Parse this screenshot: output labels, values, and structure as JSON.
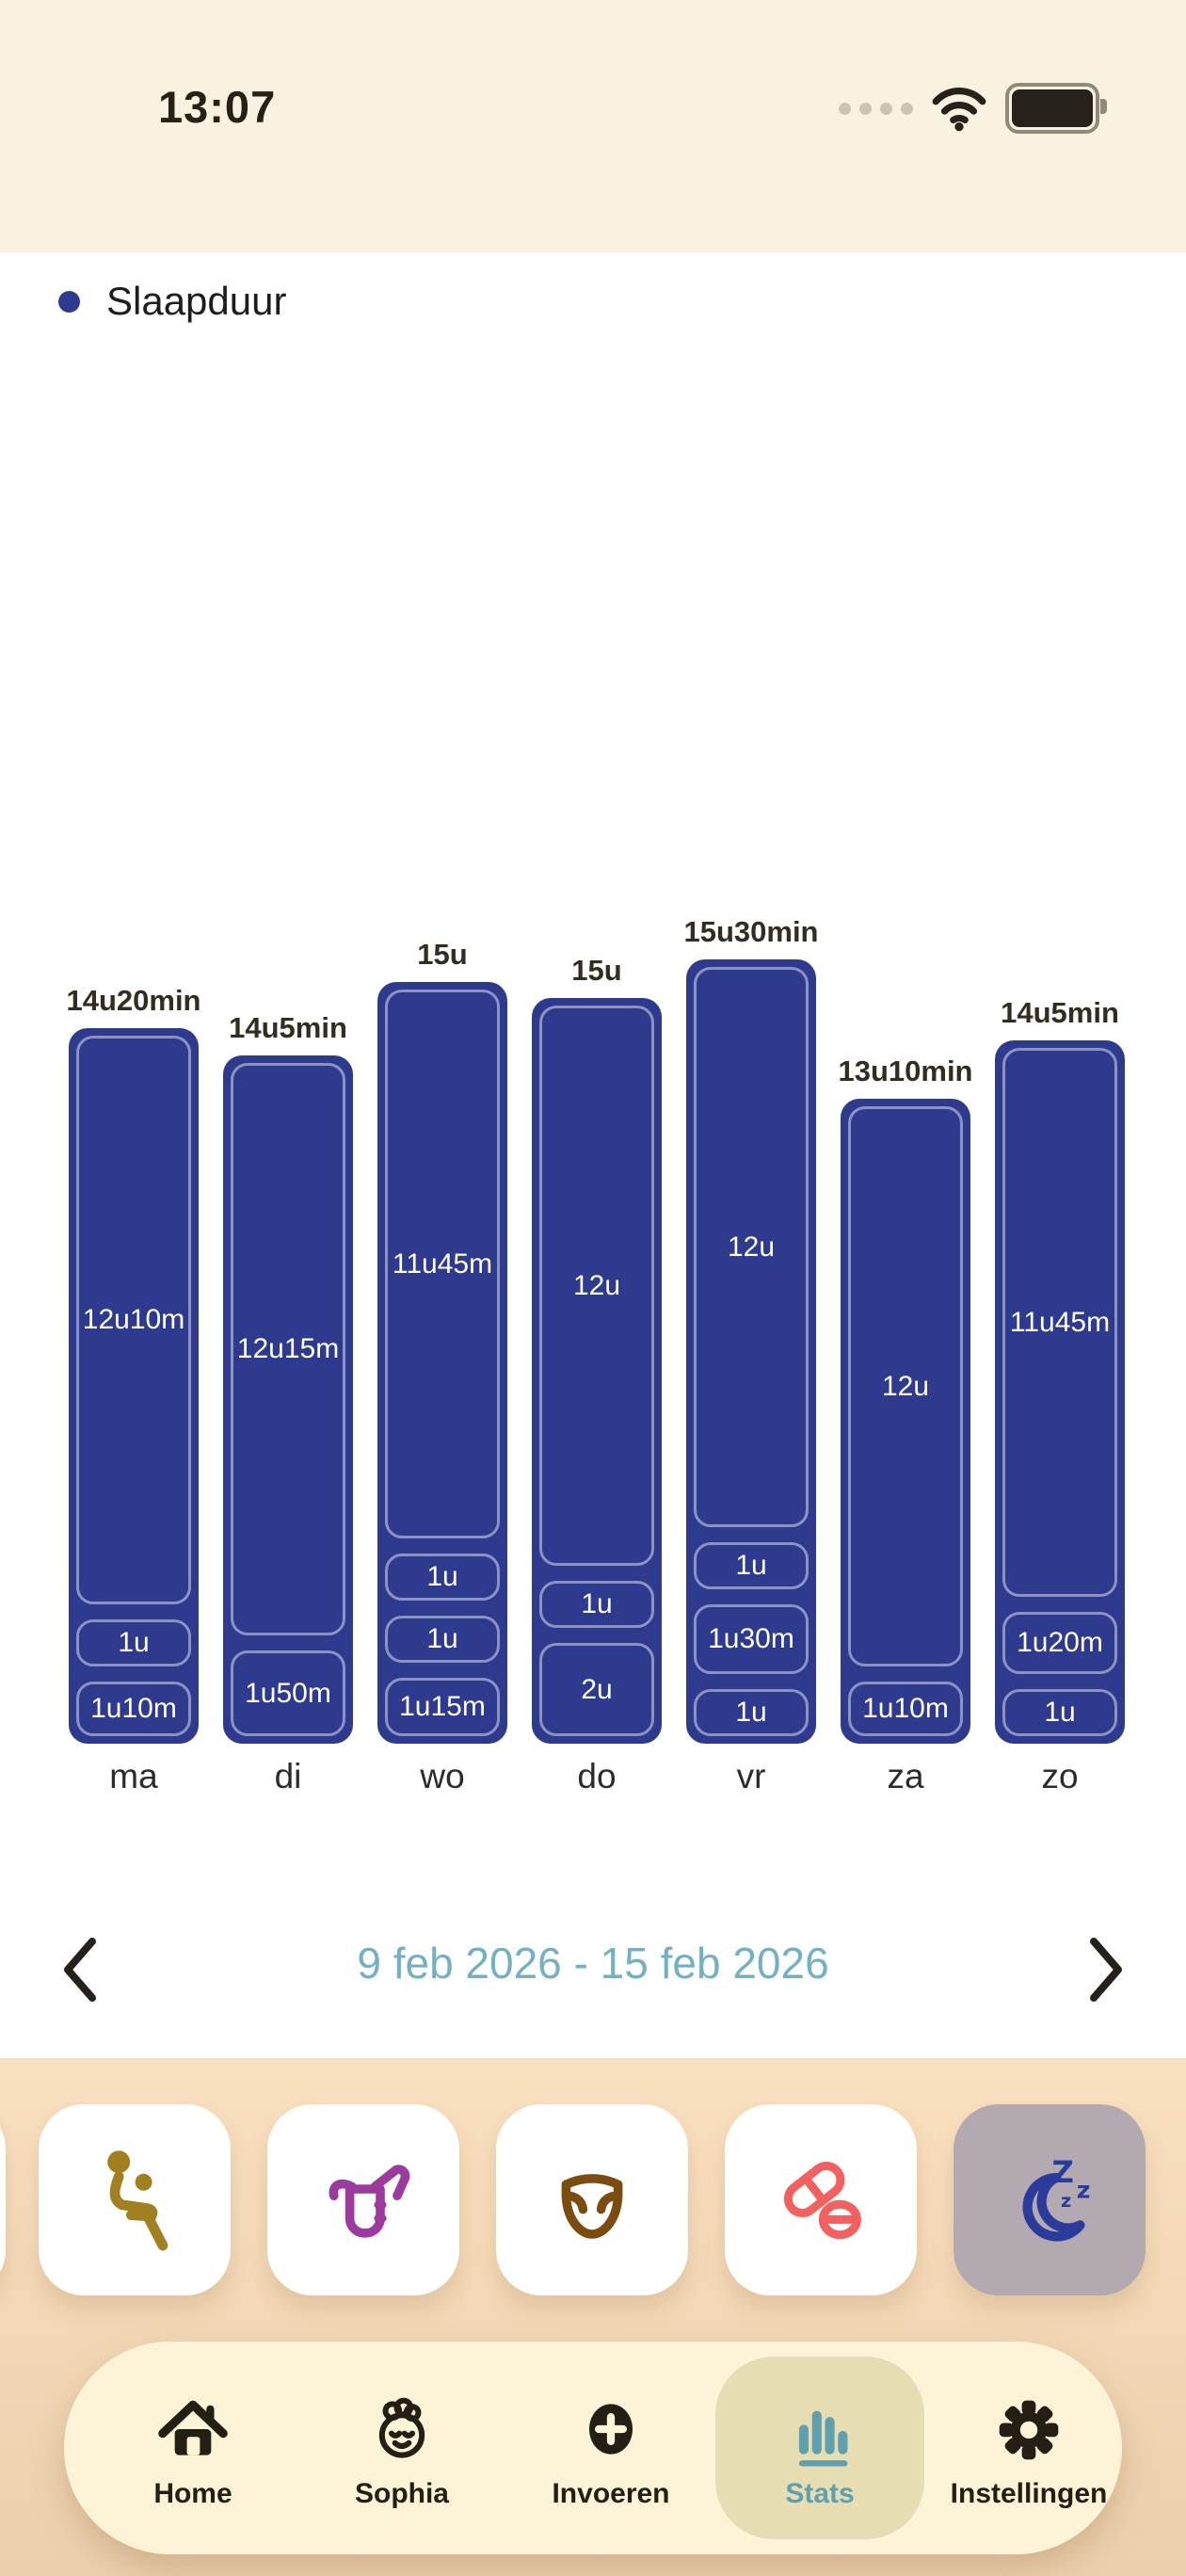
{
  "colors": {
    "status_bg": "#faf2e1",
    "ink": "#262015",
    "bar_blue": "#2e3a8e",
    "seg_border": "rgba(255,255,255,0.45)",
    "teal_text": "#73b0c2",
    "teal_icon": "#5f9fae",
    "peach_top": "#f9e0c0",
    "peach_bottom": "#ecd0ae",
    "tabbar_bg": "#fdf3d6",
    "tab_selected": "#e7ddb2",
    "sleep_bg": "#b3a9b0",
    "icon_gold": "#a1811f",
    "icon_purple": "#9c3b9d",
    "icon_brown": "#7b4b10",
    "icon_coral": "#f2605f",
    "icon_indigo": "#2b3b9b"
  },
  "status_bar": {
    "time": "13:07"
  },
  "header": {
    "title": "Slaapduur"
  },
  "chart_data": {
    "type": "bar",
    "title": "Slaapduur",
    "xlabel": "weekday",
    "ylabel": "sleep duration",
    "legend_position": "none",
    "grid": false,
    "bar_color": "#2e3a8e",
    "days": [
      {
        "label": "ma",
        "total": "14u20min",
        "total_minutes": 860,
        "segments": [
          {
            "label": "12u10m",
            "minutes": 730
          },
          {
            "label": "1u",
            "minutes": 60
          },
          {
            "label": "1u10m",
            "minutes": 70
          }
        ]
      },
      {
        "label": "di",
        "total": "14u5min",
        "total_minutes": 845,
        "segments": [
          {
            "label": "12u15m",
            "minutes": 735
          },
          {
            "label": "1u50m",
            "minutes": 110
          }
        ]
      },
      {
        "label": "wo",
        "total": "15u",
        "total_minutes": 900,
        "segments": [
          {
            "label": "11u45m",
            "minutes": 705
          },
          {
            "label": "1u",
            "minutes": 60
          },
          {
            "label": "1u",
            "minutes": 60
          },
          {
            "label": "1u15m",
            "minutes": 75
          }
        ]
      },
      {
        "label": "do",
        "total": "15u",
        "total_minutes": 900,
        "segments": [
          {
            "label": "12u",
            "minutes": 720
          },
          {
            "label": "1u",
            "minutes": 60
          },
          {
            "label": "2u",
            "minutes": 120
          }
        ]
      },
      {
        "label": "vr",
        "total": "15u30min",
        "total_minutes": 930,
        "segments": [
          {
            "label": "12u",
            "minutes": 720
          },
          {
            "label": "1u",
            "minutes": 60
          },
          {
            "label": "1u30m",
            "minutes": 90
          },
          {
            "label": "1u",
            "minutes": 60
          }
        ]
      },
      {
        "label": "za",
        "total": "13u10min",
        "total_minutes": 790,
        "segments": [
          {
            "label": "12u",
            "minutes": 720
          },
          {
            "label": "1u10m",
            "minutes": 70
          }
        ]
      },
      {
        "label": "zo",
        "total": "14u5min",
        "total_minutes": 845,
        "segments": [
          {
            "label": "11u45m",
            "minutes": 705
          },
          {
            "label": "1u20m",
            "minutes": 80
          },
          {
            "label": "1u",
            "minutes": 60
          }
        ]
      }
    ]
  },
  "date_nav": {
    "range": "9 feb 2026 - 15 feb 2026",
    "prev_icon": "chevron-left",
    "next_icon": "chevron-right"
  },
  "category_bar": {
    "selected": "sleep",
    "items": [
      {
        "name": "seat"
      },
      {
        "name": "feeding-pump"
      },
      {
        "name": "diaper"
      },
      {
        "name": "medicine"
      },
      {
        "name": "sleep"
      }
    ]
  },
  "tab_bar": {
    "selected": "Stats",
    "items": [
      {
        "label": "Home"
      },
      {
        "label": "Sophia"
      },
      {
        "label": "Invoeren"
      },
      {
        "label": "Stats"
      },
      {
        "label": "Instellingen"
      }
    ]
  }
}
